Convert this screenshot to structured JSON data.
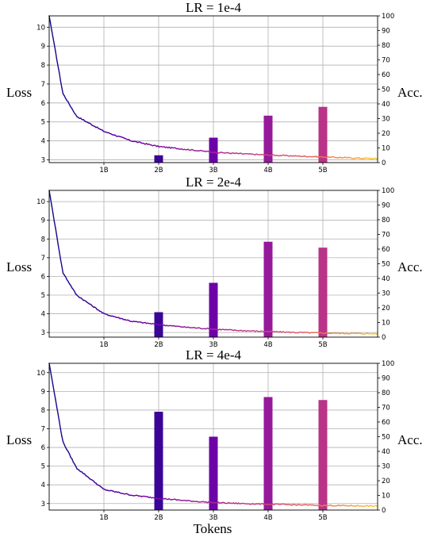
{
  "figure": {
    "xlabel": "Tokens"
  },
  "chart_data": [
    {
      "type": "line+bar",
      "title": "LR = 1e-4",
      "ylabel_left": "Loss",
      "ylabel_right": "Acc.",
      "x_ticks": [
        "1B",
        "2B",
        "3B",
        "4B",
        "5B"
      ],
      "x_tick_values_billion_tokens": [
        1,
        2,
        3,
        4,
        5
      ],
      "xlim_billion_tokens": [
        0,
        6
      ],
      "y_left_ticks": [
        3,
        4,
        5,
        6,
        7,
        8,
        9,
        10
      ],
      "y_left_lim": [
        2.85,
        10.6
      ],
      "y_right_ticks": [
        0,
        10,
        20,
        30,
        40,
        50,
        60,
        70,
        80,
        90,
        100
      ],
      "y_right_lim": [
        0,
        100
      ],
      "grid": true,
      "loss_curve": {
        "start": 10.6,
        "plateau": 3.05,
        "x_billion_tokens": [
          0,
          0.25,
          0.5,
          1,
          1.5,
          2,
          2.5,
          3,
          3.5,
          4,
          4.5,
          5,
          5.5,
          6
        ],
        "loss": [
          10.6,
          6.5,
          5.3,
          4.5,
          4.0,
          3.7,
          3.55,
          3.4,
          3.32,
          3.25,
          3.2,
          3.15,
          3.1,
          3.06
        ]
      },
      "accuracy_bars": {
        "x_billion_tokens": [
          2,
          3,
          4,
          5
        ],
        "values": [
          5,
          17,
          32,
          38
        ]
      }
    },
    {
      "type": "line+bar",
      "title": "LR = 2e-4",
      "ylabel_left": "Loss",
      "ylabel_right": "Acc.",
      "x_ticks": [
        "1B",
        "2B",
        "3B",
        "4B",
        "5B"
      ],
      "x_tick_values_billion_tokens": [
        1,
        2,
        3,
        4,
        5
      ],
      "xlim_billion_tokens": [
        0,
        6
      ],
      "y_left_ticks": [
        3,
        4,
        5,
        6,
        7,
        8,
        9,
        10
      ],
      "y_left_lim": [
        2.75,
        10.6
      ],
      "y_right_ticks": [
        0,
        10,
        20,
        30,
        40,
        50,
        60,
        70,
        80,
        90,
        100
      ],
      "y_right_lim": [
        0,
        100
      ],
      "grid": true,
      "loss_curve": {
        "start": 10.6,
        "plateau": 2.92,
        "x_billion_tokens": [
          0,
          0.25,
          0.5,
          1,
          1.5,
          2,
          2.5,
          3,
          3.5,
          4,
          4.5,
          5,
          5.5,
          6
        ],
        "loss": [
          10.6,
          6.2,
          5.0,
          4.0,
          3.6,
          3.42,
          3.28,
          3.18,
          3.1,
          3.05,
          3.0,
          2.97,
          2.95,
          2.93
        ]
      },
      "accuracy_bars": {
        "x_billion_tokens": [
          2,
          3,
          4,
          5
        ],
        "values": [
          17,
          37,
          65,
          61
        ]
      }
    },
    {
      "type": "line+bar",
      "title": "LR = 4e-4",
      "ylabel_left": "Loss",
      "ylabel_right": "Acc.",
      "x_ticks": [
        "1B",
        "2B",
        "3B",
        "4B",
        "5B"
      ],
      "x_tick_values_billion_tokens": [
        1,
        2,
        3,
        4,
        5
      ],
      "xlim_billion_tokens": [
        0,
        6
      ],
      "y_left_ticks": [
        3,
        4,
        5,
        6,
        7,
        8,
        9,
        10
      ],
      "y_left_lim": [
        2.65,
        10.5
      ],
      "y_right_ticks": [
        0,
        10,
        20,
        30,
        40,
        50,
        60,
        70,
        80,
        90,
        100
      ],
      "y_right_lim": [
        0,
        100
      ],
      "grid": true,
      "loss_curve": {
        "start": 10.5,
        "plateau": 2.85,
        "x_billion_tokens": [
          0,
          0.25,
          0.5,
          1,
          1.5,
          2,
          2.5,
          3,
          3.5,
          4,
          4.5,
          5,
          5.5,
          6
        ],
        "loss": [
          10.5,
          6.3,
          4.9,
          3.75,
          3.45,
          3.28,
          3.15,
          3.05,
          3.0,
          2.96,
          2.93,
          2.9,
          2.88,
          2.86
        ]
      },
      "accuracy_bars": {
        "x_billion_tokens": [
          2,
          3,
          4,
          5
        ],
        "values": [
          67,
          50,
          77,
          75
        ]
      }
    }
  ]
}
